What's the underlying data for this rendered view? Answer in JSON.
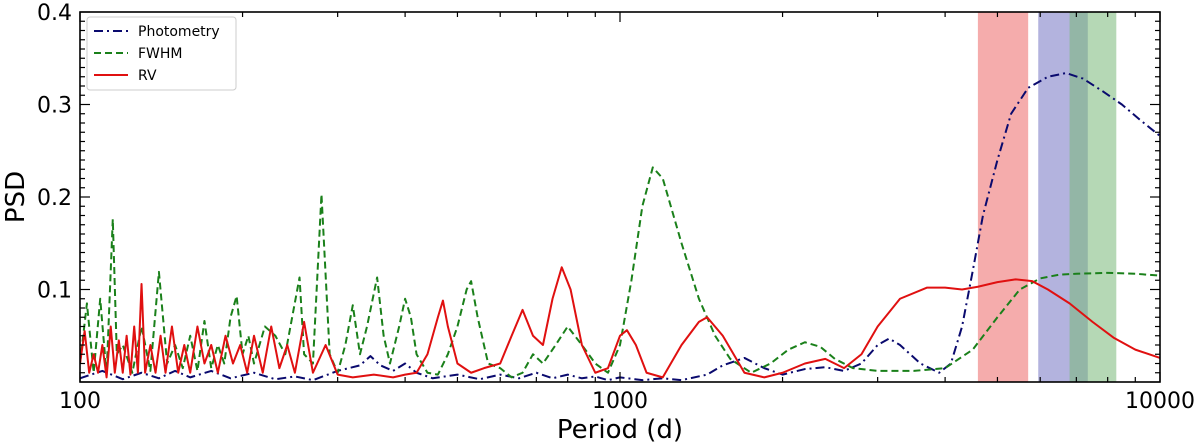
{
  "chart_data": {
    "type": "line",
    "xlabel": "Period (d)",
    "ylabel": "PSD",
    "xscale": "log",
    "xlim": [
      100,
      10000
    ],
    "ylim": [
      0,
      0.4
    ],
    "x_tick_labels": [
      {
        "value": 100,
        "label": "100"
      },
      {
        "value": 1000,
        "label": "1000"
      },
      {
        "value": 10000,
        "label": "10000"
      }
    ],
    "y_tick_labels": [
      {
        "value": 0.1,
        "label": "0.1"
      },
      {
        "value": 0.2,
        "label": "0.2"
      },
      {
        "value": 0.3,
        "label": "0.3"
      },
      {
        "value": 0.4,
        "label": "0.4"
      }
    ],
    "legend_position": "top-left",
    "grid": false,
    "shaded_bands": [
      {
        "x0": 4600,
        "x1": 5700,
        "color": "#f08080",
        "opacity": 0.65
      },
      {
        "x0": 5950,
        "x1": 7350,
        "color": "#8080c8",
        "opacity": 0.6
      },
      {
        "x0": 6800,
        "x1": 8300,
        "color": "#78b878",
        "opacity": 0.55
      }
    ],
    "series": [
      {
        "name": "Photometry",
        "color": "#0a0a6e",
        "style": "dashdot",
        "points": [
          [
            100,
            0.004
          ],
          [
            110,
            0.012
          ],
          [
            120,
            0.003
          ],
          [
            130,
            0.01
          ],
          [
            140,
            0.004
          ],
          [
            150,
            0.012
          ],
          [
            160,
            0.005
          ],
          [
            175,
            0.012
          ],
          [
            190,
            0.004
          ],
          [
            210,
            0.01
          ],
          [
            230,
            0.003
          ],
          [
            250,
            0.006
          ],
          [
            270,
            0.002
          ],
          [
            300,
            0.012
          ],
          [
            330,
            0.018
          ],
          [
            345,
            0.028
          ],
          [
            360,
            0.018
          ],
          [
            380,
            0.012
          ],
          [
            400,
            0.02
          ],
          [
            420,
            0.01
          ],
          [
            450,
            0.004
          ],
          [
            500,
            0.008
          ],
          [
            550,
            0.003
          ],
          [
            600,
            0.008
          ],
          [
            650,
            0.004
          ],
          [
            700,
            0.01
          ],
          [
            750,
            0.004
          ],
          [
            800,
            0.008
          ],
          [
            850,
            0.004
          ],
          [
            900,
            0.006
          ],
          [
            950,
            0.002
          ],
          [
            1000,
            0.005
          ],
          [
            1100,
            0.002
          ],
          [
            1200,
            0.004
          ],
          [
            1300,
            0.002
          ],
          [
            1450,
            0.008
          ],
          [
            1550,
            0.018
          ],
          [
            1700,
            0.026
          ],
          [
            1850,
            0.015
          ],
          [
            2000,
            0.008
          ],
          [
            2200,
            0.014
          ],
          [
            2400,
            0.016
          ],
          [
            2600,
            0.012
          ],
          [
            2800,
            0.02
          ],
          [
            3000,
            0.04
          ],
          [
            3150,
            0.047
          ],
          [
            3300,
            0.04
          ],
          [
            3600,
            0.02
          ],
          [
            3900,
            0.01
          ],
          [
            4100,
            0.02
          ],
          [
            4300,
            0.06
          ],
          [
            4500,
            0.12
          ],
          [
            4700,
            0.18
          ],
          [
            5000,
            0.24
          ],
          [
            5300,
            0.29
          ],
          [
            5700,
            0.318
          ],
          [
            6200,
            0.33
          ],
          [
            6700,
            0.334
          ],
          [
            7200,
            0.328
          ],
          [
            7800,
            0.315
          ],
          [
            8500,
            0.3
          ],
          [
            9200,
            0.283
          ],
          [
            10000,
            0.266
          ]
        ]
      },
      {
        "name": "FWHM",
        "color": "#1a801a",
        "style": "dashed",
        "points": [
          [
            100,
            0.02
          ],
          [
            103,
            0.085
          ],
          [
            106,
            0.01
          ],
          [
            109,
            0.09
          ],
          [
            112,
            0.008
          ],
          [
            115,
            0.176
          ],
          [
            117,
            0.03
          ],
          [
            120,
            0.04
          ],
          [
            125,
            0.01
          ],
          [
            130,
            0.06
          ],
          [
            135,
            0.012
          ],
          [
            140,
            0.119
          ],
          [
            145,
            0.02
          ],
          [
            150,
            0.04
          ],
          [
            155,
            0.015
          ],
          [
            160,
            0.05
          ],
          [
            165,
            0.012
          ],
          [
            170,
            0.066
          ],
          [
            175,
            0.015
          ],
          [
            180,
            0.04
          ],
          [
            185,
            0.02
          ],
          [
            190,
            0.07
          ],
          [
            195,
            0.093
          ],
          [
            200,
            0.03
          ],
          [
            205,
            0.05
          ],
          [
            210,
            0.02
          ],
          [
            220,
            0.06
          ],
          [
            230,
            0.05
          ],
          [
            240,
            0.03
          ],
          [
            255,
            0.113
          ],
          [
            260,
            0.03
          ],
          [
            270,
            0.02
          ],
          [
            280,
            0.203
          ],
          [
            290,
            0.03
          ],
          [
            300,
            0.01
          ],
          [
            310,
            0.04
          ],
          [
            320,
            0.083
          ],
          [
            330,
            0.03
          ],
          [
            340,
            0.06
          ],
          [
            355,
            0.113
          ],
          [
            365,
            0.05
          ],
          [
            375,
            0.02
          ],
          [
            390,
            0.06
          ],
          [
            400,
            0.09
          ],
          [
            410,
            0.07
          ],
          [
            420,
            0.03
          ],
          [
            440,
            0.01
          ],
          [
            460,
            0.008
          ],
          [
            480,
            0.03
          ],
          [
            500,
            0.06
          ],
          [
            520,
            0.1
          ],
          [
            530,
            0.109
          ],
          [
            545,
            0.07
          ],
          [
            570,
            0.02
          ],
          [
            600,
            0.015
          ],
          [
            630,
            0.005
          ],
          [
            660,
            0.01
          ],
          [
            690,
            0.03
          ],
          [
            720,
            0.02
          ],
          [
            760,
            0.04
          ],
          [
            800,
            0.06
          ],
          [
            850,
            0.04
          ],
          [
            900,
            0.02
          ],
          [
            950,
            0.01
          ],
          [
            1000,
            0.04
          ],
          [
            1050,
            0.11
          ],
          [
            1100,
            0.19
          ],
          [
            1150,
            0.232
          ],
          [
            1200,
            0.22
          ],
          [
            1300,
            0.15
          ],
          [
            1400,
            0.09
          ],
          [
            1500,
            0.05
          ],
          [
            1600,
            0.025
          ],
          [
            1750,
            0.01
          ],
          [
            1900,
            0.02
          ],
          [
            2050,
            0.035
          ],
          [
            2200,
            0.043
          ],
          [
            2350,
            0.038
          ],
          [
            2500,
            0.025
          ],
          [
            2700,
            0.015
          ],
          [
            3000,
            0.012
          ],
          [
            3500,
            0.012
          ],
          [
            4000,
            0.015
          ],
          [
            4500,
            0.035
          ],
          [
            5000,
            0.07
          ],
          [
            5500,
            0.1
          ],
          [
            6000,
            0.112
          ],
          [
            6500,
            0.116
          ],
          [
            7000,
            0.117
          ],
          [
            8000,
            0.118
          ],
          [
            9000,
            0.117
          ],
          [
            10000,
            0.115
          ]
        ]
      },
      {
        "name": "RV",
        "color": "#e01010",
        "style": "solid",
        "points": [
          [
            100,
            0.02
          ],
          [
            102,
            0.055
          ],
          [
            104,
            0.01
          ],
          [
            106,
            0.03
          ],
          [
            108,
            0.01
          ],
          [
            110,
            0.04
          ],
          [
            112,
            0.005
          ],
          [
            114,
            0.06
          ],
          [
            116,
            0.01
          ],
          [
            118,
            0.045
          ],
          [
            120,
            0.01
          ],
          [
            122,
            0.05
          ],
          [
            124,
            0.008
          ],
          [
            126,
            0.06
          ],
          [
            128,
            0.01
          ],
          [
            130,
            0.106
          ],
          [
            132,
            0.01
          ],
          [
            135,
            0.04
          ],
          [
            138,
            0.01
          ],
          [
            141,
            0.05
          ],
          [
            144,
            0.01
          ],
          [
            148,
            0.06
          ],
          [
            152,
            0.01
          ],
          [
            156,
            0.04
          ],
          [
            160,
            0.01
          ],
          [
            165,
            0.06
          ],
          [
            170,
            0.02
          ],
          [
            175,
            0.04
          ],
          [
            180,
            0.01
          ],
          [
            186,
            0.05
          ],
          [
            192,
            0.02
          ],
          [
            198,
            0.04
          ],
          [
            204,
            0.01
          ],
          [
            210,
            0.05
          ],
          [
            218,
            0.01
          ],
          [
            226,
            0.06
          ],
          [
            234,
            0.015
          ],
          [
            242,
            0.04
          ],
          [
            250,
            0.01
          ],
          [
            260,
            0.065
          ],
          [
            270,
            0.01
          ],
          [
            285,
            0.04
          ],
          [
            300,
            0.008
          ],
          [
            320,
            0.005
          ],
          [
            350,
            0.008
          ],
          [
            380,
            0.005
          ],
          [
            400,
            0.008
          ],
          [
            420,
            0.01
          ],
          [
            440,
            0.03
          ],
          [
            460,
            0.07
          ],
          [
            470,
            0.088
          ],
          [
            480,
            0.06
          ],
          [
            500,
            0.02
          ],
          [
            530,
            0.01
          ],
          [
            560,
            0.015
          ],
          [
            600,
            0.02
          ],
          [
            630,
            0.05
          ],
          [
            660,
            0.078
          ],
          [
            690,
            0.05
          ],
          [
            720,
            0.04
          ],
          [
            750,
            0.09
          ],
          [
            780,
            0.124
          ],
          [
            810,
            0.1
          ],
          [
            850,
            0.04
          ],
          [
            900,
            0.01
          ],
          [
            950,
            0.015
          ],
          [
            1000,
            0.05
          ],
          [
            1030,
            0.056
          ],
          [
            1070,
            0.04
          ],
          [
            1120,
            0.01
          ],
          [
            1200,
            0.005
          ],
          [
            1300,
            0.04
          ],
          [
            1400,
            0.065
          ],
          [
            1450,
            0.07
          ],
          [
            1550,
            0.05
          ],
          [
            1700,
            0.01
          ],
          [
            1850,
            0.005
          ],
          [
            2000,
            0.01
          ],
          [
            2200,
            0.02
          ],
          [
            2400,
            0.025
          ],
          [
            2600,
            0.015
          ],
          [
            2800,
            0.03
          ],
          [
            3000,
            0.06
          ],
          [
            3300,
            0.09
          ],
          [
            3700,
            0.102
          ],
          [
            4000,
            0.102
          ],
          [
            4300,
            0.1
          ],
          [
            4600,
            0.103
          ],
          [
            5000,
            0.108
          ],
          [
            5400,
            0.111
          ],
          [
            5800,
            0.109
          ],
          [
            6200,
            0.1
          ],
          [
            6800,
            0.085
          ],
          [
            7500,
            0.065
          ],
          [
            8200,
            0.048
          ],
          [
            9000,
            0.035
          ],
          [
            10000,
            0.026
          ]
        ]
      }
    ]
  }
}
